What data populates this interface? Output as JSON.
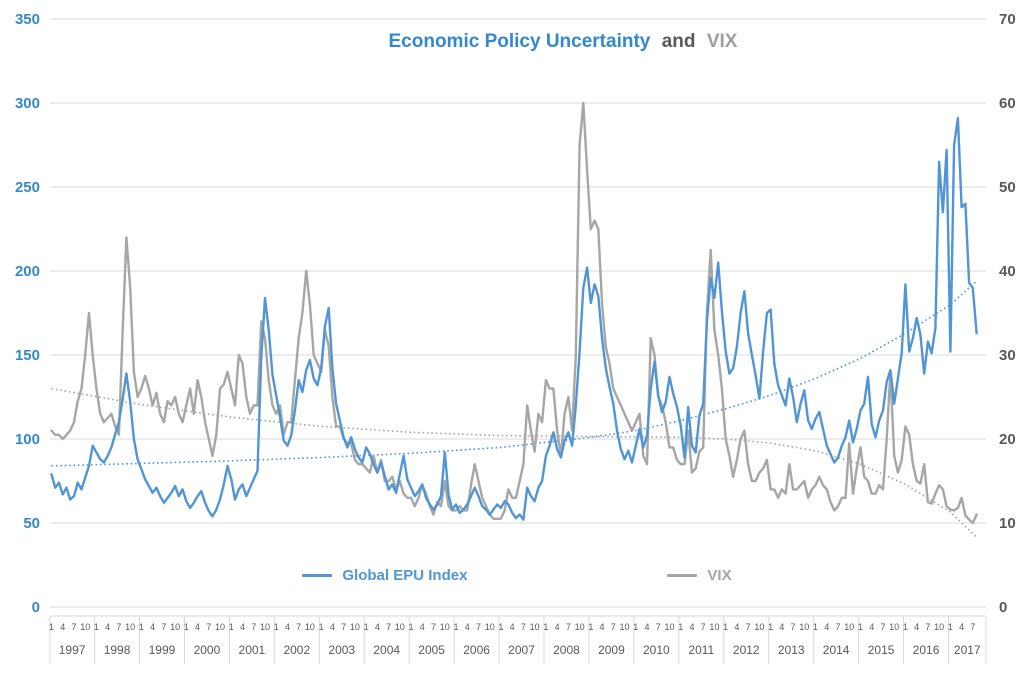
{
  "title": {
    "part1": "Economic Policy Uncertainty",
    "part2": "and",
    "part3": "VIX"
  },
  "colors": {
    "epu_line": "#5095D5",
    "vix_line": "#A6A6A6",
    "left_axis_labels": "#3488CC",
    "right_axis_labels": "#595959",
    "title_and": "#595959",
    "title_vix": "#9E9E9E",
    "gridline": "#D9D9D9",
    "x_axis_text": "#595959"
  },
  "legend": {
    "items": [
      {
        "label": "Global EPU Index",
        "color": "#5095D5"
      },
      {
        "label": "VIX",
        "color": "#A6A6A6"
      }
    ]
  },
  "chart_data": {
    "type": "line",
    "title": "Economic Policy Uncertainty and VIX",
    "frequency": "monthly",
    "x_start": "1997-01",
    "x_end": "2017-08",
    "grid": "horizontal",
    "legend_position": "bottom-center",
    "x_axis": {
      "years": [
        "1997",
        "1998",
        "1999",
        "2000",
        "2001",
        "2002",
        "2003",
        "2004",
        "2005",
        "2006",
        "2007",
        "2008",
        "2009",
        "2010",
        "2011",
        "2012",
        "2013",
        "2014",
        "2015",
        "2016",
        "2017"
      ],
      "month_ticks_full_year": [
        "1",
        "4",
        "7",
        "10"
      ],
      "month_ticks_last_year": [
        "1",
        "4",
        "7"
      ]
    },
    "y_axis_left": {
      "series": "Global EPU Index",
      "range": [
        0,
        350
      ],
      "ticks": [
        0,
        50,
        100,
        150,
        200,
        250,
        300,
        350
      ]
    },
    "y_axis_right": {
      "series": "VIX",
      "range": [
        0,
        70
      ],
      "ticks": [
        0,
        10,
        20,
        30,
        40,
        50,
        60,
        70
      ]
    },
    "series": [
      {
        "name": "Global EPU Index",
        "axis": "left",
        "color": "#5095D5",
        "values": [
          79,
          71,
          74,
          67,
          71,
          64,
          66,
          74,
          70,
          77,
          84,
          96,
          92,
          88,
          86,
          90,
          95,
          103,
          110,
          124,
          139,
          122,
          100,
          88,
          82,
          76,
          72,
          68,
          71,
          66,
          62,
          65,
          68,
          72,
          66,
          70,
          63,
          59,
          62,
          66,
          69,
          62,
          57,
          54,
          58,
          64,
          73,
          84,
          76,
          64,
          70,
          73,
          66,
          71,
          76,
          81,
          148,
          184,
          165,
          138,
          126,
          113,
          99,
          96,
          102,
          117,
          135,
          128,
          141,
          147,
          136,
          132,
          142,
          167,
          178,
          142,
          121,
          111,
          101,
          95,
          101,
          94,
          89,
          86,
          95,
          91,
          85,
          80,
          86,
          78,
          70,
          73,
          68,
          79,
          90,
          76,
          71,
          66,
          69,
          73,
          65,
          61,
          58,
          61,
          66,
          92,
          67,
          58,
          61,
          56,
          58,
          61,
          66,
          71,
          66,
          60,
          58,
          55,
          58,
          61,
          59,
          63,
          61,
          56,
          53,
          55,
          52,
          71,
          66,
          63,
          71,
          75,
          90,
          96,
          104,
          94,
          89,
          99,
          104,
          96,
          120,
          152,
          190,
          202,
          181,
          192,
          185,
          160,
          142,
          131,
          121,
          105,
          94,
          88,
          93,
          86,
          96,
          106,
          95,
          102,
          130,
          146,
          126,
          116,
          122,
          137,
          127,
          119,
          108,
          89,
          119,
          96,
          92,
          114,
          121,
          170,
          196,
          184,
          205,
          176,
          152,
          139,
          142,
          155,
          175,
          188,
          163,
          150,
          138,
          124,
          152,
          175,
          177,
          145,
          132,
          126,
          120,
          136,
          125,
          110,
          121,
          129,
          111,
          106,
          112,
          116,
          106,
          96,
          91,
          86,
          89,
          96,
          101,
          111,
          98,
          106,
          117,
          121,
          137,
          109,
          101,
          111,
          117,
          134,
          141,
          121,
          136,
          151,
          192,
          152,
          160,
          172,
          162,
          139,
          158,
          151,
          166,
          265,
          235,
          272,
          152,
          275,
          291,
          238,
          240,
          193,
          190,
          163
        ]
      },
      {
        "name": "VIX",
        "axis": "right",
        "color": "#A6A6A6",
        "values": [
          21,
          20.5,
          20.5,
          20,
          20.5,
          21,
          22,
          24.5,
          26,
          30,
          35,
          30,
          26,
          23,
          22,
          22.5,
          23,
          21.5,
          20.5,
          33,
          44,
          38,
          28,
          25,
          26,
          27.5,
          26,
          24,
          25.5,
          23,
          22,
          24.5,
          24,
          25,
          23,
          22,
          24,
          26,
          23,
          27,
          25,
          22,
          20,
          18,
          20.5,
          26,
          26.5,
          28,
          26,
          24,
          30,
          29,
          25,
          23,
          24,
          24,
          34,
          32,
          27,
          24,
          23,
          24,
          20.5,
          22,
          22,
          27,
          32,
          35,
          40,
          36,
          30,
          29,
          28,
          33,
          31,
          25,
          21.5,
          21.5,
          20,
          19.5,
          19.5,
          17.5,
          17,
          17,
          16.5,
          16,
          18,
          16,
          17.5,
          15,
          15,
          15.5,
          14,
          15,
          13.5,
          13,
          13,
          12,
          13,
          14.5,
          13.5,
          12,
          11,
          12.5,
          12,
          15,
          12,
          11.5,
          11.5,
          12,
          11.5,
          11.5,
          14.5,
          17,
          15,
          13,
          12,
          11,
          10.5,
          10.5,
          10.5,
          11.5,
          14,
          13,
          13,
          15,
          17,
          24,
          21,
          18.5,
          23,
          22,
          27,
          26,
          26,
          21,
          18,
          23,
          25,
          21,
          30,
          55,
          60,
          52,
          45,
          46,
          45,
          36,
          31,
          29,
          26,
          25,
          24,
          23,
          22,
          21,
          22,
          23,
          18,
          17,
          32,
          30,
          25,
          24,
          22,
          19,
          19,
          17.5,
          17,
          17,
          21,
          16,
          16.5,
          18.5,
          19,
          35,
          42.5,
          33,
          30,
          26,
          20,
          18,
          15.5,
          17.5,
          20,
          21,
          17,
          15,
          15,
          16,
          16.5,
          17.5,
          14,
          14,
          13,
          14,
          13.5,
          17,
          14,
          14,
          14.5,
          15,
          13,
          14,
          14.5,
          15.5,
          14.5,
          14,
          12.5,
          11.5,
          12,
          13,
          13,
          19.5,
          13.5,
          16.5,
          19,
          15.5,
          15,
          13.5,
          13.5,
          14.5,
          14,
          20,
          28,
          18,
          16,
          17.5,
          21.5,
          20.5,
          17,
          15,
          14.7,
          17,
          12.5,
          12.3,
          13.5,
          14.5,
          14,
          12,
          11.6,
          11.5,
          11.8,
          13,
          10.9,
          10.4,
          10,
          11
        ]
      }
    ],
    "trendlines": [
      {
        "name": "Global EPU Index trend",
        "axis": "left",
        "style": "dotted",
        "color": "#5095D5",
        "points": [
          [
            0,
            84
          ],
          [
            24,
            85.5
          ],
          [
            48,
            87
          ],
          [
            72,
            89
          ],
          [
            96,
            91.5
          ],
          [
            120,
            95
          ],
          [
            144,
            101
          ],
          [
            156,
            105
          ],
          [
            168,
            111
          ],
          [
            180,
            118
          ],
          [
            192,
            126
          ],
          [
            204,
            136
          ],
          [
            216,
            148
          ],
          [
            228,
            163
          ],
          [
            240,
            180
          ],
          [
            247,
            194
          ]
        ]
      },
      {
        "name": "VIX trend",
        "axis": "right",
        "style": "dotted",
        "color": "#A6A6A6",
        "points": [
          [
            0,
            26
          ],
          [
            24,
            24.1
          ],
          [
            48,
            22.6
          ],
          [
            72,
            21.5
          ],
          [
            96,
            20.8
          ],
          [
            120,
            20.4
          ],
          [
            144,
            20.3
          ],
          [
            168,
            20.2
          ],
          [
            180,
            20.0
          ],
          [
            192,
            19.5
          ],
          [
            204,
            18.6
          ],
          [
            216,
            17.0
          ],
          [
            228,
            14.6
          ],
          [
            240,
            11.3
          ],
          [
            247,
            8.3
          ]
        ]
      }
    ]
  }
}
